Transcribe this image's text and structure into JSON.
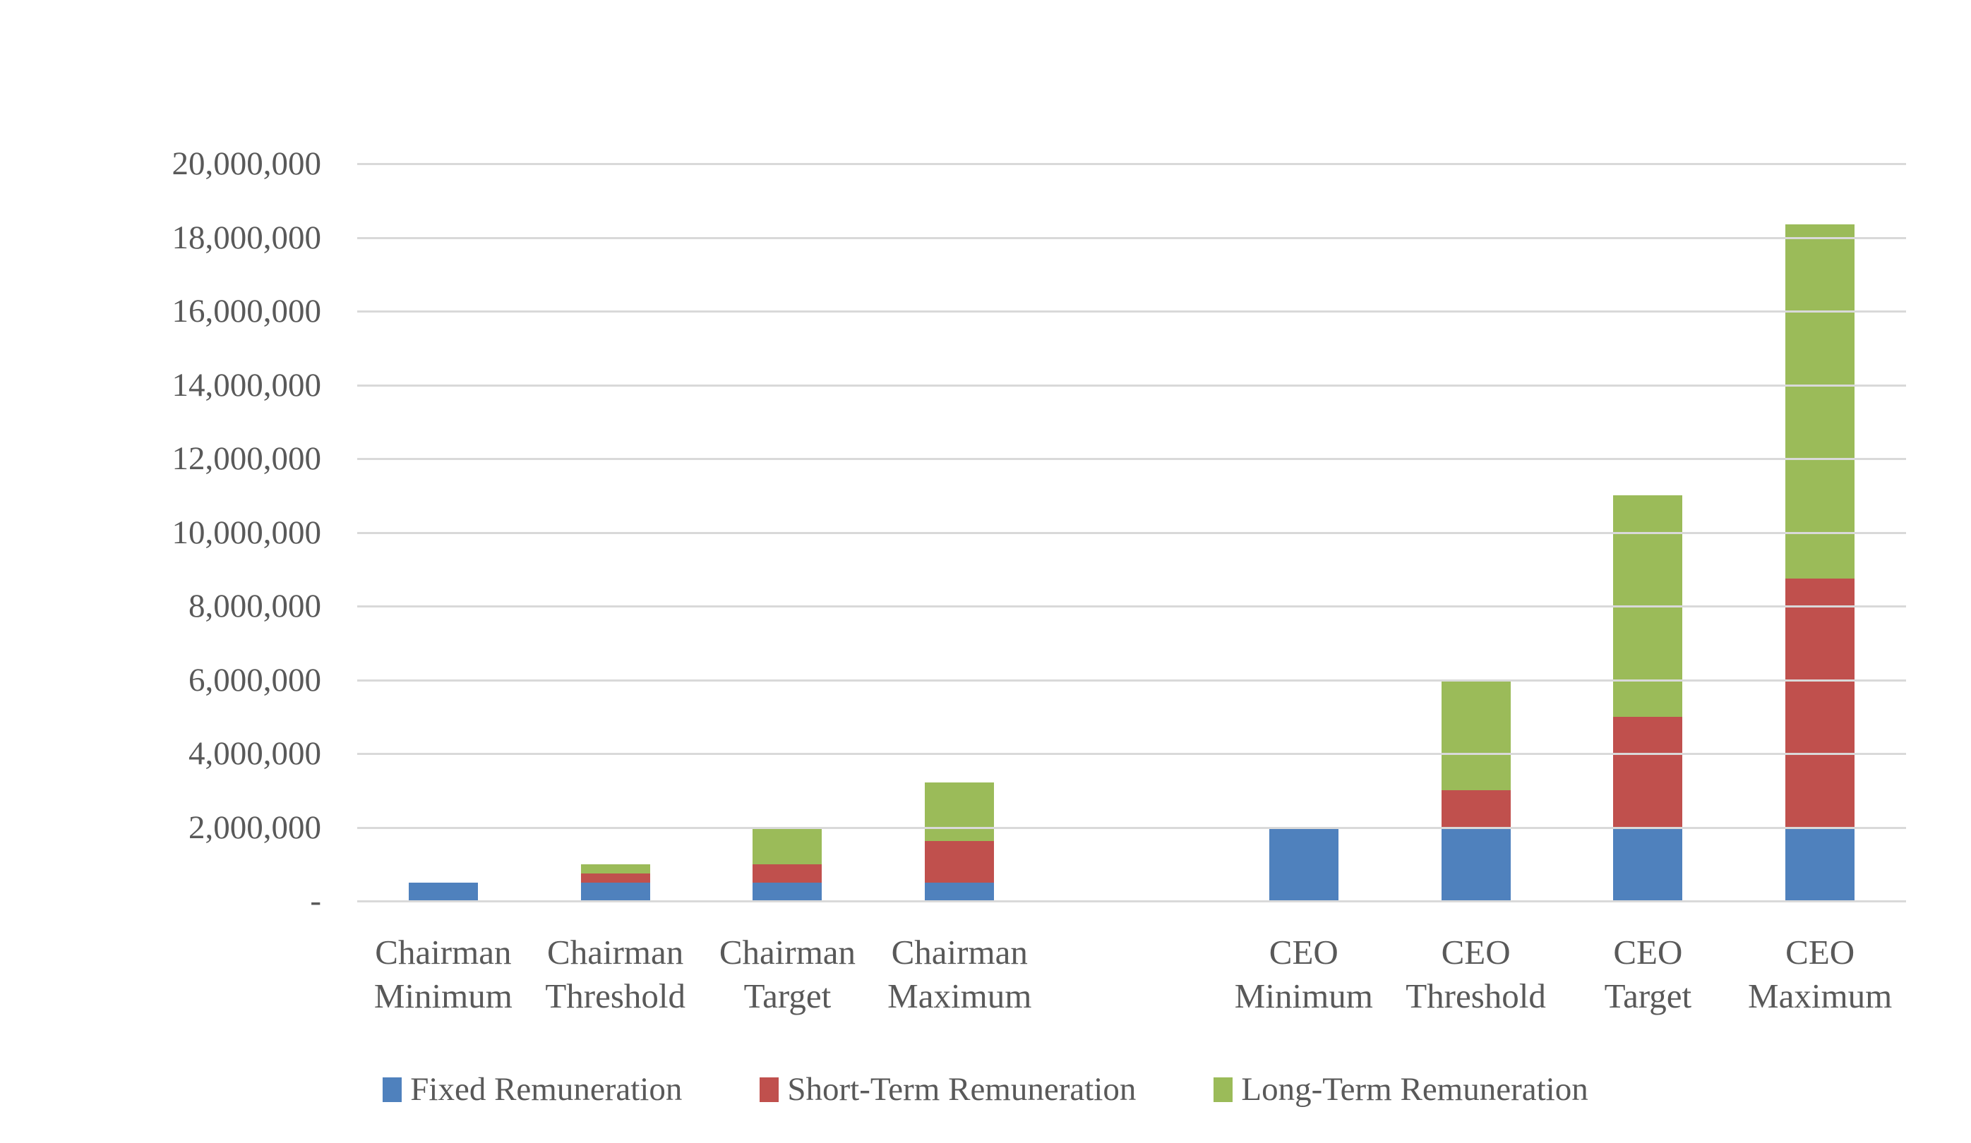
{
  "chart_data": {
    "type": "bar",
    "stacked": true,
    "title": "",
    "background_color": "#FFFFFF",
    "text_color": "#595959",
    "gridline_color": "#D9D9D9",
    "grid": true,
    "legend_position": "bottom",
    "y_axis": {
      "min": 0,
      "max": 20000000,
      "tick_interval": 2000000,
      "tick_labels": [
        "-",
        "2,000,000",
        "4,000,000",
        "6,000,000",
        "8,000,000",
        "10,000,000",
        "12,000,000",
        "14,000,000",
        "16,000,000",
        "18,000,000",
        "20,000,000"
      ]
    },
    "categories": [
      [
        "Chairman",
        "Minimum"
      ],
      [
        "Chairman",
        "Threshold"
      ],
      [
        "Chairman",
        "Target"
      ],
      [
        "Chairman",
        "Maximum"
      ],
      null,
      [
        "CEO",
        "Minimum"
      ],
      [
        "CEO",
        "Threshold"
      ],
      [
        "CEO",
        "Target"
      ],
      [
        "CEO",
        "Maximum"
      ]
    ],
    "series": [
      {
        "name": "Fixed Remuneration",
        "color": "#4F81BD",
        "values": [
          500000,
          500000,
          500000,
          500000,
          null,
          2000000,
          2000000,
          2000000,
          2000000
        ]
      },
      {
        "name": "Short-Term Remuneration",
        "color": "#C0504D",
        "values": [
          0,
          250000,
          500000,
          1125000,
          null,
          0,
          1000000,
          3000000,
          6750000
        ]
      },
      {
        "name": "Long-Term Remuneration",
        "color": "#9BBB59",
        "values": [
          0,
          250000,
          1000000,
          1600000,
          null,
          0,
          3000000,
          6000000,
          9600000
        ]
      }
    ]
  }
}
